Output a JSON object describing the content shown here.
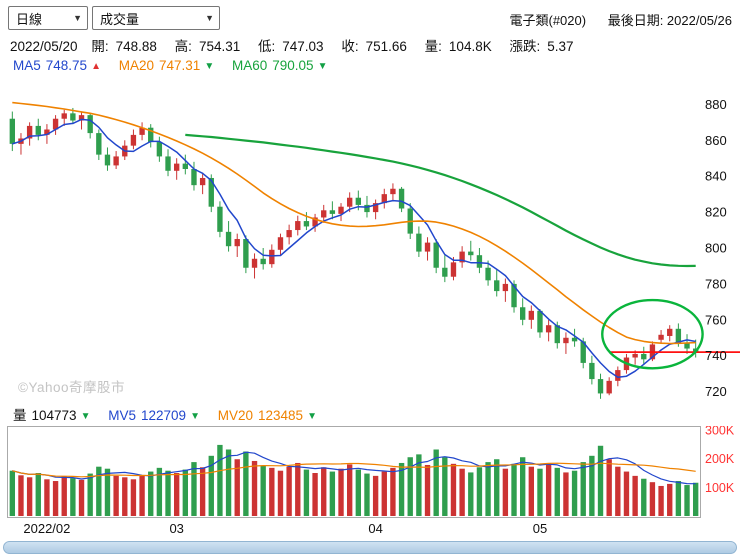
{
  "toolbar": {
    "period_select": "日線",
    "indicator_select": "成交量",
    "symbol": "電子類(#020)",
    "last_date": "最後日期: 2022/05/26"
  },
  "icons": {
    "up": "▲",
    "down": "▼",
    "chevron": "▼"
  },
  "quote": {
    "date": "2022/05/20",
    "fields": [
      {
        "label": "開:",
        "value": "748.88"
      },
      {
        "label": "高:",
        "value": "754.31"
      },
      {
        "label": "低:",
        "value": "747.03"
      },
      {
        "label": "收:",
        "value": "751.66"
      },
      {
        "label": "量:",
        "value": "104.8K"
      },
      {
        "label": "漲跌:",
        "value": "5.37"
      }
    ]
  },
  "ma_legend": {
    "ma5": {
      "label": "MA5",
      "value": "748.75",
      "dir": "up"
    },
    "ma20": {
      "label": "MA20",
      "value": "747.31",
      "dir": "down"
    },
    "ma60": {
      "label": "MA60",
      "value": "790.05",
      "dir": "down"
    }
  },
  "vol_legend": {
    "vol": {
      "label": "量",
      "value": "104773",
      "dir": "down"
    },
    "mv5": {
      "label": "MV5",
      "value": "122709",
      "dir": "down"
    },
    "mv20": {
      "label": "MV20",
      "value": "123485",
      "dir": "down"
    }
  },
  "watermark": "©Yahoo奇摩股市",
  "colors": {
    "up": "#cc3333",
    "down": "#2f9e4e",
    "ma5": "#2247cc",
    "ma20": "#ef8200",
    "ma60": "#18a33c",
    "vol_axis": "#ff3333",
    "price_line": "#ff1111",
    "annotation": "#0ab53c",
    "panel_border": "#aaaaaa"
  },
  "chart_data": {
    "type": "candlestick",
    "title": "電子類(#020) 日線",
    "ylim": [
      712,
      888
    ],
    "volume_ylim_k": [
      0,
      300
    ],
    "axis": {
      "price_ticks": [
        880,
        860,
        840,
        820,
        800,
        780,
        760,
        740,
        720
      ],
      "volume_ticks_k": [
        300,
        200,
        100
      ],
      "month_labels": [
        {
          "index": 4,
          "label": "2022/02"
        },
        {
          "index": 19,
          "label": "03"
        },
        {
          "index": 42,
          "label": "04"
        },
        {
          "index": 61,
          "label": "05"
        }
      ]
    },
    "candles": [
      [
        872,
        876,
        854,
        858
      ],
      [
        858,
        864,
        852,
        861
      ],
      [
        861,
        870,
        857,
        868
      ],
      [
        868,
        872,
        860,
        863
      ],
      [
        863,
        869,
        858,
        866
      ],
      [
        866,
        874,
        863,
        872
      ],
      [
        872,
        877,
        868,
        875
      ],
      [
        875,
        878,
        869,
        871
      ],
      [
        871,
        876,
        866,
        874
      ],
      [
        874,
        875,
        861,
        864
      ],
      [
        864,
        866,
        849,
        852
      ],
      [
        852,
        856,
        843,
        846
      ],
      [
        846,
        854,
        844,
        851
      ],
      [
        851,
        860,
        849,
        857
      ],
      [
        857,
        866,
        855,
        863
      ],
      [
        863,
        870,
        860,
        867
      ],
      [
        867,
        869,
        856,
        859
      ],
      [
        859,
        862,
        848,
        851
      ],
      [
        851,
        855,
        840,
        843
      ],
      [
        843,
        850,
        838,
        847
      ],
      [
        847,
        852,
        841,
        844
      ],
      [
        844,
        848,
        832,
        835
      ],
      [
        835,
        842,
        830,
        839
      ],
      [
        839,
        841,
        820,
        823
      ],
      [
        823,
        826,
        806,
        809
      ],
      [
        809,
        815,
        798,
        801
      ],
      [
        801,
        808,
        795,
        805
      ],
      [
        805,
        807,
        786,
        789
      ],
      [
        789,
        797,
        783,
        794
      ],
      [
        794,
        800,
        788,
        791
      ],
      [
        791,
        802,
        789,
        799
      ],
      [
        799,
        808,
        796,
        806
      ],
      [
        806,
        813,
        802,
        810
      ],
      [
        810,
        818,
        807,
        815
      ],
      [
        815,
        820,
        810,
        812
      ],
      [
        812,
        819,
        809,
        817
      ],
      [
        817,
        824,
        814,
        821
      ],
      [
        821,
        826,
        816,
        819
      ],
      [
        819,
        825,
        815,
        823
      ],
      [
        823,
        831,
        820,
        828
      ],
      [
        828,
        832,
        821,
        824
      ],
      [
        824,
        829,
        817,
        820
      ],
      [
        820,
        827,
        816,
        825
      ],
      [
        825,
        833,
        822,
        830
      ],
      [
        830,
        836,
        826,
        833
      ],
      [
        833,
        834,
        820,
        822
      ],
      [
        822,
        825,
        805,
        808
      ],
      [
        808,
        812,
        795,
        798
      ],
      [
        798,
        806,
        793,
        803
      ],
      [
        803,
        805,
        786,
        789
      ],
      [
        789,
        796,
        781,
        784
      ],
      [
        784,
        795,
        782,
        792
      ],
      [
        792,
        801,
        789,
        798
      ],
      [
        798,
        804,
        793,
        796
      ],
      [
        796,
        800,
        786,
        789
      ],
      [
        789,
        793,
        779,
        782
      ],
      [
        782,
        788,
        773,
        776
      ],
      [
        776,
        783,
        770,
        780
      ],
      [
        780,
        782,
        764,
        767
      ],
      [
        767,
        772,
        757,
        760
      ],
      [
        760,
        768,
        755,
        765
      ],
      [
        765,
        766,
        750,
        753
      ],
      [
        753,
        760,
        748,
        757
      ],
      [
        757,
        759,
        744,
        747
      ],
      [
        747,
        753,
        741,
        750
      ],
      [
        750,
        755,
        745,
        748
      ],
      [
        748,
        750,
        733,
        736
      ],
      [
        736,
        740,
        724,
        727
      ],
      [
        727,
        730,
        716,
        719
      ],
      [
        719,
        728,
        718,
        726
      ],
      [
        726,
        734,
        723,
        732
      ],
      [
        732,
        741,
        730,
        739
      ],
      [
        739,
        743,
        735,
        741
      ],
      [
        741,
        745,
        735,
        738
      ],
      [
        738,
        748,
        737,
        746.29
      ],
      [
        748.88,
        754.31,
        747.03,
        751.66
      ],
      [
        751,
        757,
        748,
        755
      ],
      [
        755,
        758,
        745,
        747
      ],
      [
        747,
        752,
        741,
        744
      ],
      [
        744,
        749,
        739,
        742
      ]
    ],
    "volumes_k": [
      158,
      142,
      135,
      150,
      128,
      122,
      138,
      132,
      126,
      148,
      172,
      165,
      140,
      135,
      128,
      142,
      155,
      168,
      158,
      150,
      162,
      188,
      170,
      210,
      248,
      232,
      198,
      225,
      192,
      175,
      168,
      158,
      172,
      185,
      162,
      150,
      170,
      155,
      165,
      180,
      162,
      148,
      140,
      155,
      168,
      185,
      205,
      215,
      178,
      232,
      205,
      182,
      165,
      152,
      170,
      188,
      198,
      165,
      182,
      205,
      172,
      165,
      182,
      168,
      152,
      158,
      188,
      210,
      245,
      198,
      172,
      155,
      140,
      130,
      118,
      104.8,
      112,
      122,
      108,
      116
    ],
    "ma20": [
      881,
      880.5,
      880,
      879.4,
      878.8,
      878.1,
      877.4,
      876.6,
      875.8,
      875,
      874,
      872.8,
      871.5,
      870.1,
      868.6,
      867,
      865.3,
      863.5,
      861.6,
      859.6,
      857.5,
      855.2,
      852.8,
      850.2,
      847.4,
      844.4,
      841.2,
      837.8,
      834.3,
      830.7,
      827.5,
      824.6,
      822,
      819.7,
      817.7,
      816,
      814.6,
      813.5,
      812.7,
      812.2,
      812,
      812.1,
      812.4,
      812.9,
      813.6,
      814.3,
      814.8,
      815,
      814.9,
      814.4,
      813.5,
      812.2,
      810.6,
      808.7,
      806.5,
      804,
      801.2,
      798.2,
      795,
      791.6,
      788,
      784.3,
      780.5,
      776.7,
      772.9,
      769.2,
      765.6,
      762.1,
      758.8,
      755.7,
      752.9,
      750.4,
      749,
      748,
      747.3,
      747,
      746.8,
      746.9,
      747.1,
      747.3
    ],
    "ma60": [
      null,
      null,
      null,
      null,
      null,
      null,
      null,
      null,
      null,
      null,
      null,
      null,
      null,
      null,
      null,
      null,
      null,
      null,
      null,
      null,
      863,
      862.6,
      862.2,
      861.8,
      861.3,
      860.8,
      860.3,
      859.8,
      859.3,
      858.8,
      858.2,
      857.6,
      857,
      856.4,
      855.8,
      855.1,
      854.4,
      853.7,
      853,
      852.3,
      851.5,
      850.7,
      849.9,
      849,
      848.1,
      847.1,
      846,
      844.8,
      843.5,
      842.1,
      840.6,
      839,
      837.3,
      835.5,
      833.6,
      831.6,
      829.5,
      827.3,
      825,
      822.6,
      820.1,
      817.5,
      814.9,
      812.3,
      809.7,
      807.2,
      804.8,
      802.5,
      800.3,
      798.3,
      796.5,
      794.9,
      793.5,
      792.4,
      791.5,
      790.8,
      790.3,
      790.1,
      790,
      790.05
    ],
    "annotations": {
      "ellipse": {
        "index_from": 68.2,
        "index_to": 79.8,
        "price_from": 733,
        "price_to": 771
      },
      "price_line": {
        "price": 742,
        "from_index": 69
      }
    }
  }
}
